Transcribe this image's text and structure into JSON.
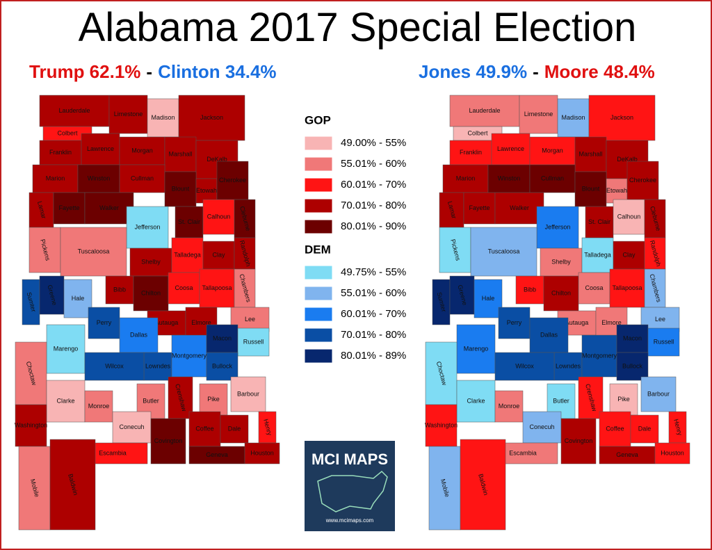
{
  "title": "Alabama 2017 Special Election",
  "legend": [
    {
      "heading": "GOP",
      "items": [
        {
          "label": "49.00% - 55%",
          "color": "#f8b4b4"
        },
        {
          "label": "55.01% - 60%",
          "color": "#f07878"
        },
        {
          "label": "60.01% - 70%",
          "color": "#ff1414"
        },
        {
          "label": "70.01% - 80%",
          "color": "#ad0000"
        },
        {
          "label": "80.01% - 90%",
          "color": "#6c0000"
        }
      ]
    },
    {
      "heading": "DEM",
      "items": [
        {
          "label": "49.75% - 55%",
          "color": "#7fdcf4"
        },
        {
          "label": "55.01% - 60%",
          "color": "#80b4ee"
        },
        {
          "label": "60.01% - 70%",
          "color": "#1a7cf0"
        },
        {
          "label": "70.01% - 80%",
          "color": "#0a4ea4"
        },
        {
          "label": "80.01% - 89%",
          "color": "#07276e"
        }
      ]
    }
  ],
  "logo": {
    "name": "MCI MAPS",
    "url": "www.mcimaps.com"
  },
  "maps": [
    {
      "headline": [
        {
          "text": "Trump 62.1%",
          "color": "#e01010"
        },
        {
          "text": "-",
          "color": "#000000"
        },
        {
          "text": "Clinton 34.4%",
          "color": "#1a6fe0"
        }
      ],
      "counties": [
        {
          "name": "Lauderdale",
          "color": "#ad0000"
        },
        {
          "name": "Limestone",
          "color": "#ad0000"
        },
        {
          "name": "Madison",
          "color": "#f8b4b4"
        },
        {
          "name": "Jackson",
          "color": "#ad0000"
        },
        {
          "name": "Colbert",
          "color": "#ff1414"
        },
        {
          "name": "Franklin",
          "color": "#ad0000"
        },
        {
          "name": "Lawrence",
          "color": "#ad0000"
        },
        {
          "name": "Morgan",
          "color": "#ad0000"
        },
        {
          "name": "Marshall",
          "color": "#ad0000"
        },
        {
          "name": "DeKalb",
          "color": "#ad0000"
        },
        {
          "name": "Marion",
          "color": "#ad0000"
        },
        {
          "name": "Winston",
          "color": "#6c0000"
        },
        {
          "name": "Cullman",
          "color": "#ad0000"
        },
        {
          "name": "Blount",
          "color": "#6c0000"
        },
        {
          "name": "Etowah",
          "color": "#ad0000"
        },
        {
          "name": "Cherokee",
          "color": "#6c0000"
        },
        {
          "name": "Lamar",
          "color": "#ad0000"
        },
        {
          "name": "Fayette",
          "color": "#6c0000"
        },
        {
          "name": "Walker",
          "color": "#6c0000"
        },
        {
          "name": "St. Clair",
          "color": "#6c0000"
        },
        {
          "name": "Calhoun",
          "color": "#ff1414"
        },
        {
          "name": "Cleburne",
          "color": "#6c0000"
        },
        {
          "name": "Jefferson",
          "color": "#7fdcf4"
        },
        {
          "name": "Pickens",
          "color": "#f07878"
        },
        {
          "name": "Tuscaloosa",
          "color": "#f07878"
        },
        {
          "name": "Shelby",
          "color": "#ad0000"
        },
        {
          "name": "Talladega",
          "color": "#ff1414"
        },
        {
          "name": "Clay",
          "color": "#ad0000"
        },
        {
          "name": "Randolph",
          "color": "#ad0000"
        },
        {
          "name": "Sumter",
          "color": "#0a4ea4"
        },
        {
          "name": "Greene",
          "color": "#07276e"
        },
        {
          "name": "Hale",
          "color": "#80b4ee"
        },
        {
          "name": "Bibb",
          "color": "#ad0000"
        },
        {
          "name": "Chilton",
          "color": "#6c0000"
        },
        {
          "name": "Coosa",
          "color": "#ff1414"
        },
        {
          "name": "Tallapoosa",
          "color": "#ff1414"
        },
        {
          "name": "Chambers",
          "color": "#f07878"
        },
        {
          "name": "Perry",
          "color": "#0a4ea4"
        },
        {
          "name": "Autauga",
          "color": "#ad0000"
        },
        {
          "name": "Elmore",
          "color": "#ad0000"
        },
        {
          "name": "Lee",
          "color": "#f07878"
        },
        {
          "name": "Marengo",
          "color": "#7fdcf4"
        },
        {
          "name": "Dallas",
          "color": "#1a7cf0"
        },
        {
          "name": "Lowndes",
          "color": "#0a4ea4"
        },
        {
          "name": "Montgomery",
          "color": "#1a7cf0"
        },
        {
          "name": "Macon",
          "color": "#07276e"
        },
        {
          "name": "Russell",
          "color": "#7fdcf4"
        },
        {
          "name": "Bullock",
          "color": "#0a4ea4"
        },
        {
          "name": "Wilcox",
          "color": "#0a4ea4"
        },
        {
          "name": "Choctaw",
          "color": "#f07878"
        },
        {
          "name": "Clarke",
          "color": "#f8b4b4"
        },
        {
          "name": "Monroe",
          "color": "#f07878"
        },
        {
          "name": "Butler",
          "color": "#f07878"
        },
        {
          "name": "Crenshaw",
          "color": "#ad0000"
        },
        {
          "name": "Pike",
          "color": "#f07878"
        },
        {
          "name": "Barbour",
          "color": "#f8b4b4"
        },
        {
          "name": "Henry",
          "color": "#ff1414"
        },
        {
          "name": "Conecuh",
          "color": "#f8b4b4"
        },
        {
          "name": "Washington",
          "color": "#ad0000"
        },
        {
          "name": "Escambia",
          "color": "#ff1414"
        },
        {
          "name": "Covington",
          "color": "#6c0000"
        },
        {
          "name": "Coffee",
          "color": "#ad0000"
        },
        {
          "name": "Dale",
          "color": "#ad0000"
        },
        {
          "name": "Geneva",
          "color": "#6c0000"
        },
        {
          "name": "Houston",
          "color": "#ad0000"
        },
        {
          "name": "Mobile",
          "color": "#f07878"
        },
        {
          "name": "Baldwin",
          "color": "#ad0000"
        }
      ]
    },
    {
      "headline": [
        {
          "text": "Jones 49.9%",
          "color": "#1a6fe0"
        },
        {
          "text": "-",
          "color": "#000000"
        },
        {
          "text": "Moore 48.4%",
          "color": "#e01010"
        }
      ],
      "counties": [
        {
          "name": "Lauderdale",
          "color": "#f07878"
        },
        {
          "name": "Limestone",
          "color": "#f07878"
        },
        {
          "name": "Madison",
          "color": "#80b4ee"
        },
        {
          "name": "Jackson",
          "color": "#ff1414"
        },
        {
          "name": "Colbert",
          "color": "#f8b4b4"
        },
        {
          "name": "Franklin",
          "color": "#ff1414"
        },
        {
          "name": "Lawrence",
          "color": "#ff1414"
        },
        {
          "name": "Morgan",
          "color": "#ff1414"
        },
        {
          "name": "Marshall",
          "color": "#ad0000"
        },
        {
          "name": "DeKalb",
          "color": "#ad0000"
        },
        {
          "name": "Marion",
          "color": "#ad0000"
        },
        {
          "name": "Winston",
          "color": "#6c0000"
        },
        {
          "name": "Cullman",
          "color": "#6c0000"
        },
        {
          "name": "Blount",
          "color": "#6c0000"
        },
        {
          "name": "Etowah",
          "color": "#f07878"
        },
        {
          "name": "Cherokee",
          "color": "#ad0000"
        },
        {
          "name": "Lamar",
          "color": "#ad0000"
        },
        {
          "name": "Fayette",
          "color": "#ad0000"
        },
        {
          "name": "Walker",
          "color": "#ad0000"
        },
        {
          "name": "St. Clair",
          "color": "#ad0000"
        },
        {
          "name": "Calhoun",
          "color": "#f8b4b4"
        },
        {
          "name": "Cleburne",
          "color": "#ad0000"
        },
        {
          "name": "Jefferson",
          "color": "#1a7cf0"
        },
        {
          "name": "Pickens",
          "color": "#7fdcf4"
        },
        {
          "name": "Tuscaloosa",
          "color": "#80b4ee"
        },
        {
          "name": "Shelby",
          "color": "#f07878"
        },
        {
          "name": "Talladega",
          "color": "#7fdcf4"
        },
        {
          "name": "Clay",
          "color": "#ad0000"
        },
        {
          "name": "Randolph",
          "color": "#ff1414"
        },
        {
          "name": "Sumter",
          "color": "#07276e"
        },
        {
          "name": "Greene",
          "color": "#07276e"
        },
        {
          "name": "Hale",
          "color": "#1a7cf0"
        },
        {
          "name": "Bibb",
          "color": "#ff1414"
        },
        {
          "name": "Chilton",
          "color": "#ad0000"
        },
        {
          "name": "Coosa",
          "color": "#f07878"
        },
        {
          "name": "Tallapoosa",
          "color": "#ff1414"
        },
        {
          "name": "Chambers",
          "color": "#80b4ee"
        },
        {
          "name": "Perry",
          "color": "#0a4ea4"
        },
        {
          "name": "Autauga",
          "color": "#f07878"
        },
        {
          "name": "Elmore",
          "color": "#f07878"
        },
        {
          "name": "Lee",
          "color": "#80b4ee"
        },
        {
          "name": "Marengo",
          "color": "#1a7cf0"
        },
        {
          "name": "Dallas",
          "color": "#0a4ea4"
        },
        {
          "name": "Lowndes",
          "color": "#0a4ea4"
        },
        {
          "name": "Montgomery",
          "color": "#0a4ea4"
        },
        {
          "name": "Macon",
          "color": "#07276e"
        },
        {
          "name": "Russell",
          "color": "#1a7cf0"
        },
        {
          "name": "Bullock",
          "color": "#07276e"
        },
        {
          "name": "Wilcox",
          "color": "#0a4ea4"
        },
        {
          "name": "Choctaw",
          "color": "#7fdcf4"
        },
        {
          "name": "Clarke",
          "color": "#7fdcf4"
        },
        {
          "name": "Monroe",
          "color": "#f07878"
        },
        {
          "name": "Butler",
          "color": "#7fdcf4"
        },
        {
          "name": "Crenshaw",
          "color": "#ff1414"
        },
        {
          "name": "Pike",
          "color": "#f8b4b4"
        },
        {
          "name": "Barbour",
          "color": "#80b4ee"
        },
        {
          "name": "Henry",
          "color": "#ff1414"
        },
        {
          "name": "Conecuh",
          "color": "#80b4ee"
        },
        {
          "name": "Washington",
          "color": "#ff1414"
        },
        {
          "name": "Escambia",
          "color": "#f07878"
        },
        {
          "name": "Covington",
          "color": "#ad0000"
        },
        {
          "name": "Coffee",
          "color": "#ff1414"
        },
        {
          "name": "Dale",
          "color": "#ff1414"
        },
        {
          "name": "Geneva",
          "color": "#ad0000"
        },
        {
          "name": "Houston",
          "color": "#ff1414"
        },
        {
          "name": "Mobile",
          "color": "#80b4ee"
        },
        {
          "name": "Baldwin",
          "color": "#ff1414"
        }
      ]
    }
  ]
}
